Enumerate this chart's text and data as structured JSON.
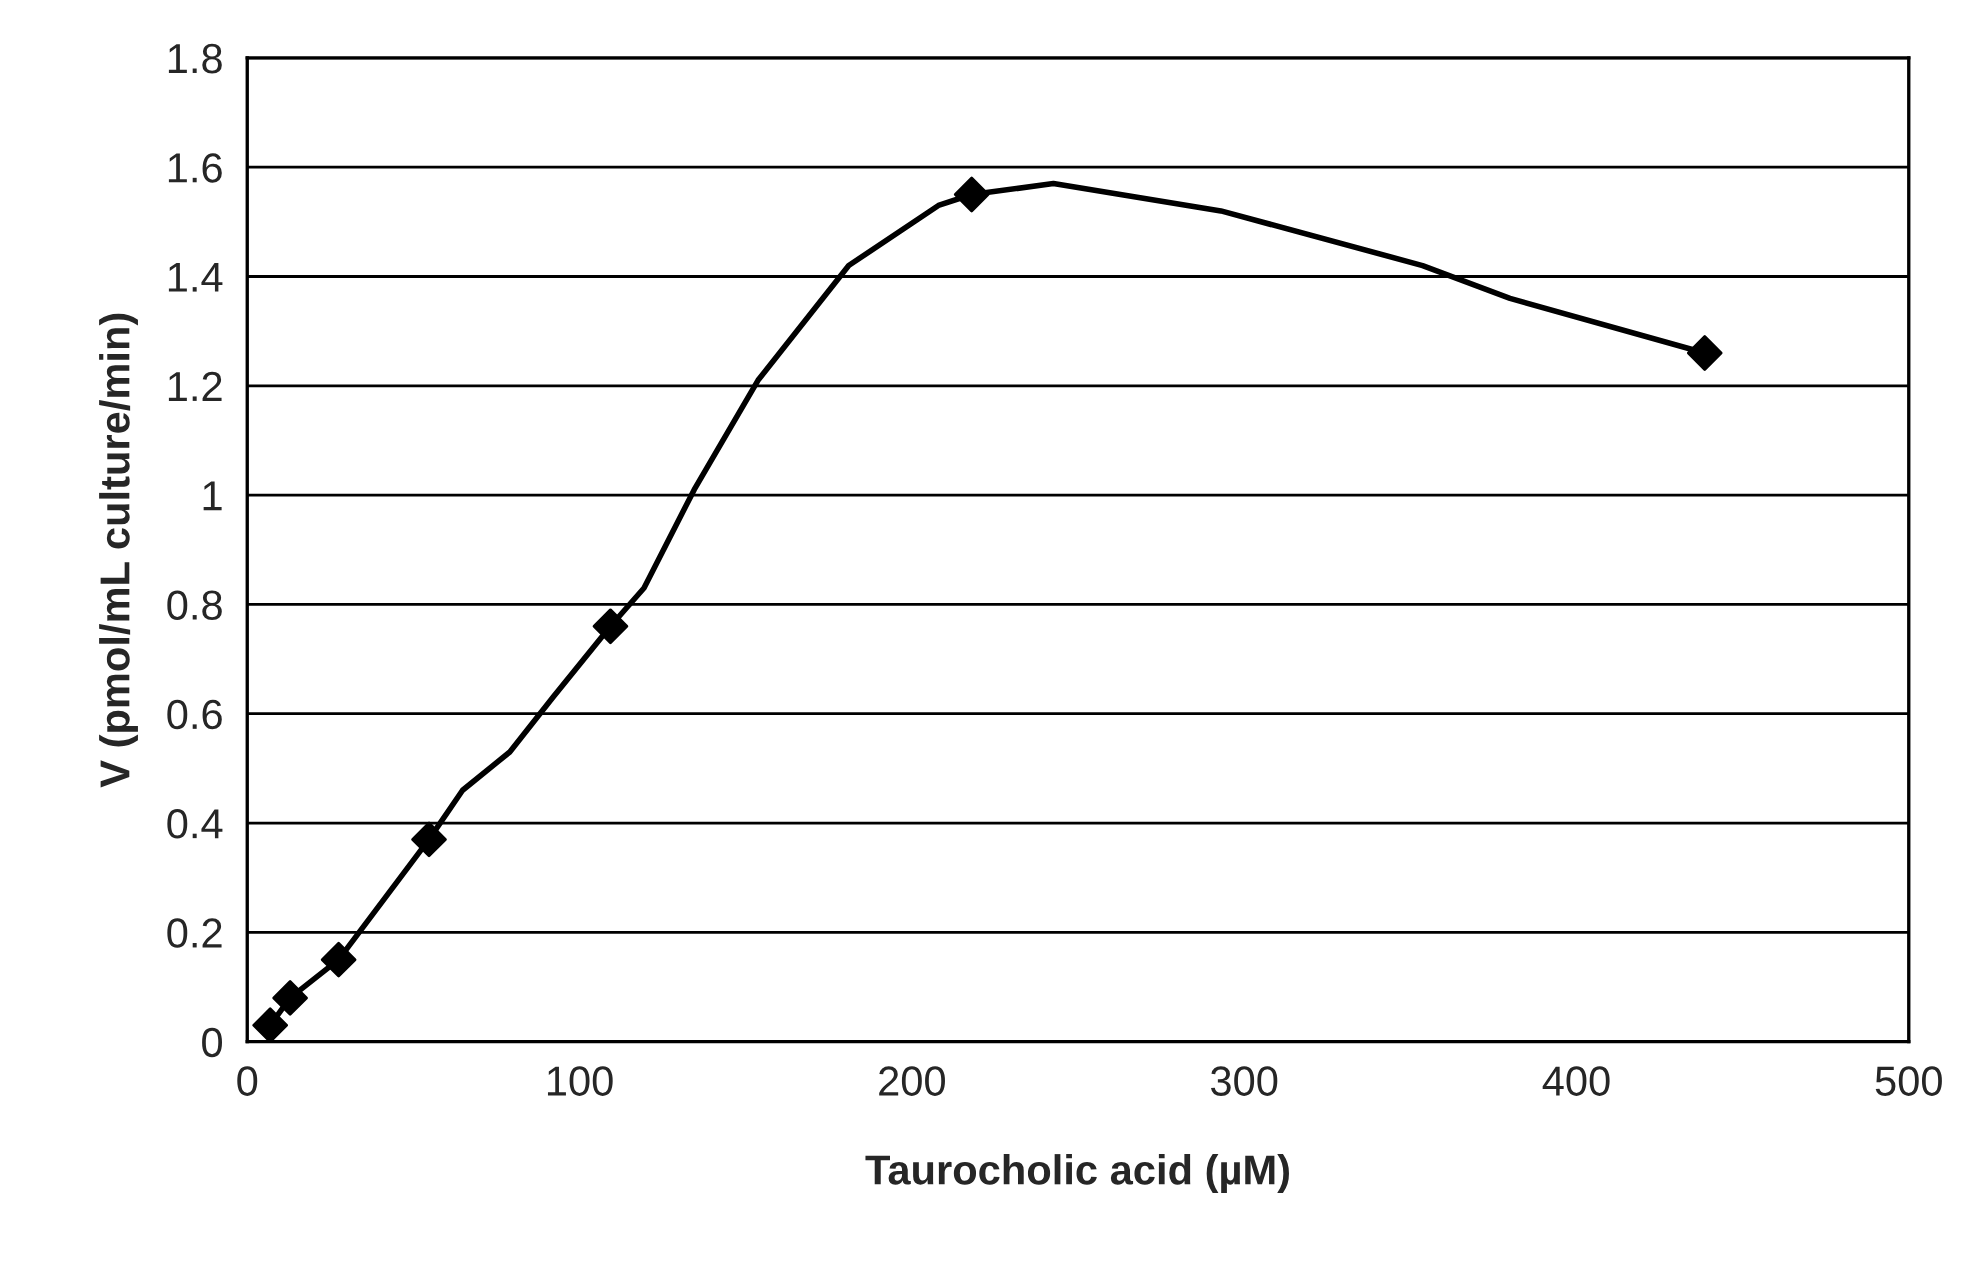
{
  "chart_data": {
    "type": "scatter",
    "xlabel": "Taurocholic acid (µM)",
    "ylabel": "V (pmol/mL culture/min)",
    "x": [
      6.9,
      12.9,
      27.5,
      54.7,
      109.3,
      218,
      438.6
    ],
    "series": [
      {
        "type": "line",
        "color": "#000000",
        "marker": "none",
        "line_style": "solid",
        "x": [
          6.9,
          12.9,
          27.5,
          54.7,
          64.8,
          79,
          92,
          109.3,
          119.4,
          134.5,
          153.7,
          181,
          208,
          218,
          242.6,
          293,
          353.7,
          380,
          438.6
        ],
        "values": [
          0.03,
          0.08,
          0.15,
          0.37,
          0.46,
          0.53,
          0.63,
          0.76,
          0.83,
          1.01,
          1.21,
          1.42,
          1.53,
          1.55,
          1.57,
          1.52,
          1.42,
          1.36,
          1.26
        ]
      },
      {
        "color": "#000000",
        "marker": "diamond",
        "values": [
          0.03,
          0.08,
          0.15,
          0.37,
          0.76,
          1.55,
          1.26
        ]
      }
    ],
    "xlim": [
      0,
      500
    ],
    "xticks": [
      0,
      100,
      200,
      300,
      400,
      500
    ],
    "ylim": [
      0,
      1.8
    ],
    "yticks": [
      0,
      0.2,
      0.4,
      0.6,
      0.8,
      1,
      1.2,
      1.4,
      1.6,
      1.8
    ],
    "grid": "y",
    "legend": false
  }
}
